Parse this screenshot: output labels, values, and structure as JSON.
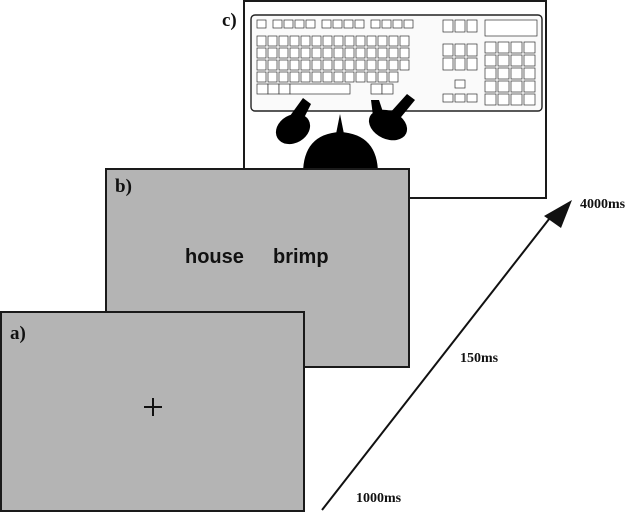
{
  "panels": {
    "a": {
      "label": "a)",
      "fixation": "+"
    },
    "b": {
      "label": "b)",
      "words": [
        "house",
        "brimp"
      ]
    },
    "c": {
      "label": "c)"
    }
  },
  "timeline": [
    "1000ms",
    "150ms",
    "4000ms"
  ],
  "colors": {
    "screen": "#b4b4b4",
    "ink": "#111111"
  }
}
